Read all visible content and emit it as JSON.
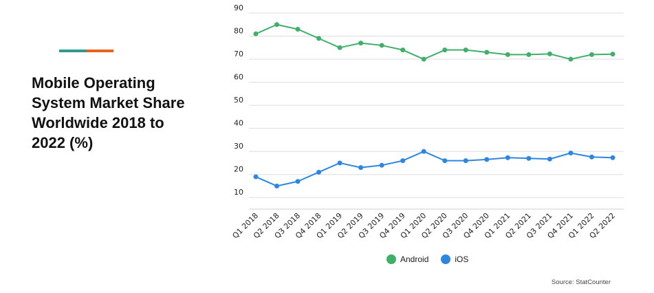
{
  "title": "Mobile Operating System Market Share Worldwide 2018 to 2022 (%)",
  "source": "Source: StatCounter",
  "colors": {
    "accent_left": "#2e9a8e",
    "accent_right": "#e8641e",
    "android": "#3faf6a",
    "ios": "#2d86e2",
    "grid": "#dddddd"
  },
  "chart_data": {
    "type": "line",
    "title": "Mobile Operating System Market Share Worldwide 2018 to 2022 (%)",
    "xlabel": "",
    "ylabel": "",
    "ylim": [
      5,
      90
    ],
    "yticks": [
      10,
      20,
      30,
      40,
      50,
      60,
      70,
      80,
      90
    ],
    "grid": true,
    "legend_position": "bottom",
    "categories": [
      "Q1 2018",
      "Q2 2018",
      "Q3 2018",
      "Q4 2018",
      "Q1 2019",
      "Q2 2019",
      "Q3 2019",
      "Q4 2019",
      "Q1 2020",
      "Q2 2020",
      "Q3 2020",
      "Q4 2020",
      "Q1 2021",
      "Q2 2021",
      "Q3 2021",
      "Q4 2021",
      "Q1 2022",
      "Q2 2022"
    ],
    "series": [
      {
        "name": "Android",
        "color": "#3faf6a",
        "values": [
          81,
          85,
          83,
          79,
          75,
          77,
          76,
          74,
          70,
          74,
          74,
          73,
          72,
          72,
          72.3,
          70,
          72,
          72.2
        ]
      },
      {
        "name": "iOS",
        "color": "#2d86e2",
        "values": [
          19,
          15,
          17,
          21,
          25,
          23,
          24,
          26,
          30,
          26,
          26,
          26.5,
          27.3,
          27,
          26.7,
          29.3,
          27.6,
          27.3
        ]
      }
    ]
  }
}
